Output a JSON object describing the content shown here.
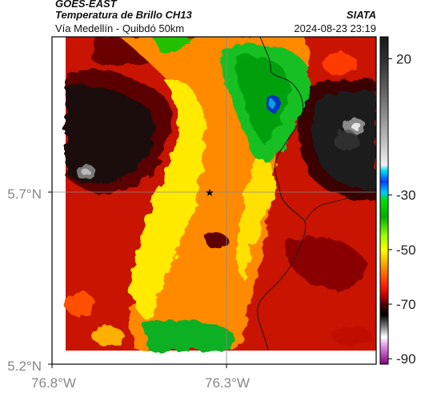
{
  "header": {
    "satellite": "GOES-EAST",
    "product": "Temperatura de Brillo CH13",
    "route": "Vía Medellín - Quibdó 50km",
    "org": "SIATA",
    "timestamp": "2024-08-23 23:19"
  },
  "axes": {
    "lat_ticks": [
      "5.7°N",
      "5.2°N"
    ],
    "lon_ticks": [
      "76.8°W",
      "76.3°W"
    ]
  },
  "colorbar": {
    "ticks": [
      "20",
      "-30",
      "-50",
      "-70",
      "-90"
    ],
    "stops": [
      {
        "v": 28,
        "c": "#1a1a1a"
      },
      {
        "v": 20,
        "c": "#2e2e2e"
      },
      {
        "v": 10,
        "c": "#5a5a5a"
      },
      {
        "v": 0,
        "c": "#8a8a8a"
      },
      {
        "v": -10,
        "c": "#bdbdbd"
      },
      {
        "v": -19,
        "c": "#f0f0f0"
      },
      {
        "v": -21,
        "c": "#00e0ff"
      },
      {
        "v": -25,
        "c": "#003cff"
      },
      {
        "v": -29,
        "c": "#00c8ff"
      },
      {
        "v": -32,
        "c": "#00e000"
      },
      {
        "v": -38,
        "c": "#00b000"
      },
      {
        "v": -45,
        "c": "#9aff00"
      },
      {
        "v": -50,
        "c": "#ffff00"
      },
      {
        "v": -57,
        "c": "#ff8800"
      },
      {
        "v": -63,
        "c": "#ff2200"
      },
      {
        "v": -67,
        "c": "#c00000"
      },
      {
        "v": -70,
        "c": "#500000"
      },
      {
        "v": -74,
        "c": "#000000"
      },
      {
        "v": -78,
        "c": "#777777"
      },
      {
        "v": -82,
        "c": "#ffffff"
      },
      {
        "v": -86,
        "c": "#e080e0"
      },
      {
        "v": -92,
        "c": "#800080"
      }
    ]
  },
  "marker": {
    "symbol": "star",
    "color": "#000000"
  },
  "colors": {
    "warm_red": "#c81400",
    "orange": "#ff8a00",
    "yellow": "#ffea00",
    "green": "#18c020",
    "gray_cloudfree": "#222222",
    "gridline": "#8a8a8a"
  }
}
